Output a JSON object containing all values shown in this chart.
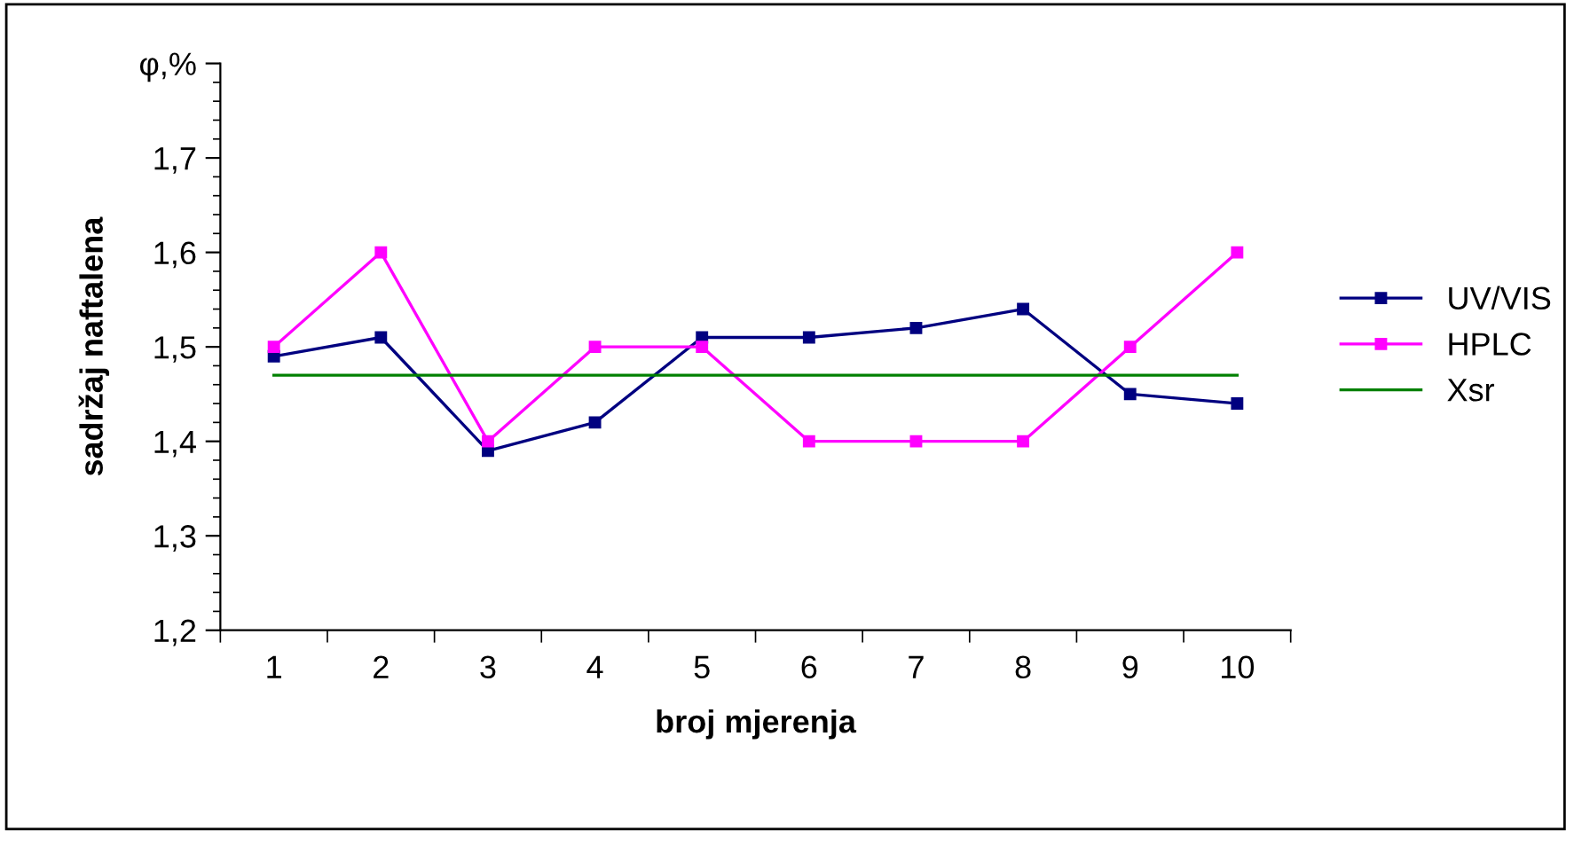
{
  "chart_data": {
    "type": "line",
    "xlabel": "broj mjerenja",
    "ylabel": "sadržaj naftalena",
    "categories": [
      "1",
      "2",
      "3",
      "4",
      "5",
      "6",
      "7",
      "8",
      "9",
      "10"
    ],
    "series": [
      {
        "name": "UV/VIS",
        "color": "#000080",
        "marker": "square",
        "values": [
          1.49,
          1.51,
          1.39,
          1.42,
          1.51,
          1.51,
          1.52,
          1.54,
          1.45,
          1.44
        ]
      },
      {
        "name": "HPLC",
        "color": "#ff00ff",
        "marker": "square",
        "values": [
          1.5,
          1.6,
          1.4,
          1.5,
          1.5,
          1.4,
          1.4,
          1.4,
          1.5,
          1.6
        ]
      },
      {
        "name": "Xsr",
        "color": "#008000",
        "marker": "none",
        "values": [
          1.47,
          1.47,
          1.47,
          1.47,
          1.47,
          1.47,
          1.47,
          1.47,
          1.47,
          1.47
        ]
      }
    ],
    "ylim": [
      1.2,
      1.8
    ],
    "yticks": [
      {
        "value": 1.2,
        "label": "1,2"
      },
      {
        "value": 1.3,
        "label": "1,3"
      },
      {
        "value": 1.4,
        "label": "1,4"
      },
      {
        "value": 1.5,
        "label": "1,5"
      },
      {
        "value": 1.6,
        "label": "1,6"
      },
      {
        "value": 1.7,
        "label": "1,7"
      },
      {
        "value": 1.8,
        "label": "φ,%"
      }
    ],
    "grid": false,
    "legend": "right",
    "line_style": "solid"
  }
}
